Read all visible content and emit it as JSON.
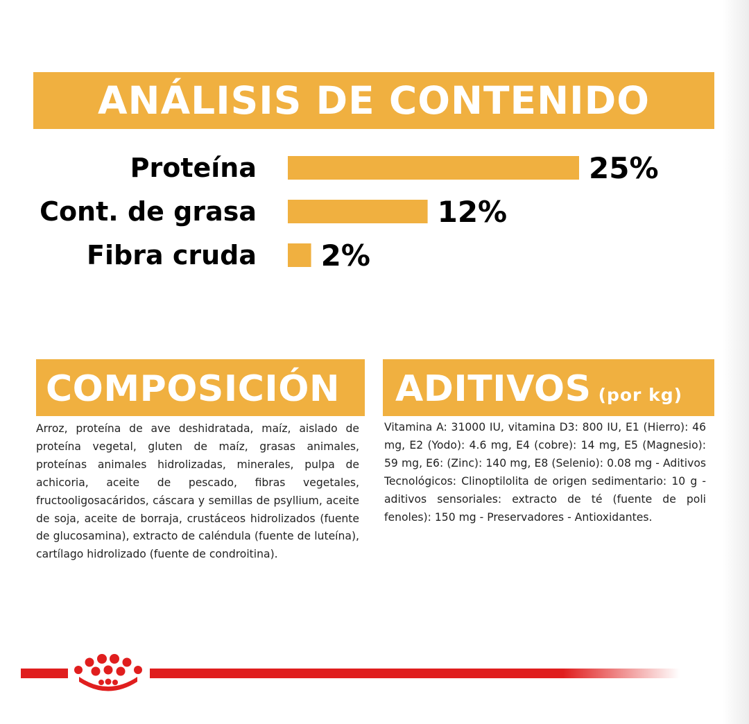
{
  "title": "ANÁLISIS DE CONTENIDO",
  "chart_data": {
    "type": "bar",
    "orientation": "horizontal",
    "categories": [
      "Proteína",
      "Cont. de grasa",
      "Fibra cruda"
    ],
    "values": [
      25,
      12,
      2
    ],
    "value_labels": [
      "25%",
      "12%",
      "2%"
    ],
    "unit": "%",
    "bar_color": "#f0b040",
    "grid": false,
    "legend": "none"
  },
  "composition": {
    "heading": "COMPOSICIÓN",
    "text": "Arroz, proteína de ave deshidratada, maíz, aislado de proteína vegetal, gluten de maíz, grasas animales, proteínas animales hidrolizadas, minerales, pulpa de achicoria, aceite de pescado, fibras vegetales, fructooligosacáridos, cáscara y semillas de psyllium, aceite de soja, aceite de borraja, crustáceos hidrolizados (fuente de glucosamina), extracto de caléndula (fuente de luteína), cartílago hidrolizado (fuente de condroitina)."
  },
  "additives": {
    "heading": "ADITIVOS",
    "unit_note": "(por kg)",
    "text": "Vitamina A: 31000 IU, vitamina D3: 800 IU, E1 (Hierro): 46 mg, E2 (Yodo): 4.6 mg, E4 (cobre): 14 mg, E5 (Magnesio): 59 mg, E6: (Zinc): 140 mg, E8 (Selenio): 0.08 mg - Aditivos Tecnológicos: Clinoptilolita de origen sedimentario: 10 g - aditivos sensoriales: extracto de té (fuente de poli fenoles): 150 mg - Preservadores - Antioxidantes."
  },
  "colors": {
    "accent": "#f0b040",
    "brand_red": "#e01e1e"
  },
  "icons": {
    "brand_logo": "royal-crown-icon"
  }
}
